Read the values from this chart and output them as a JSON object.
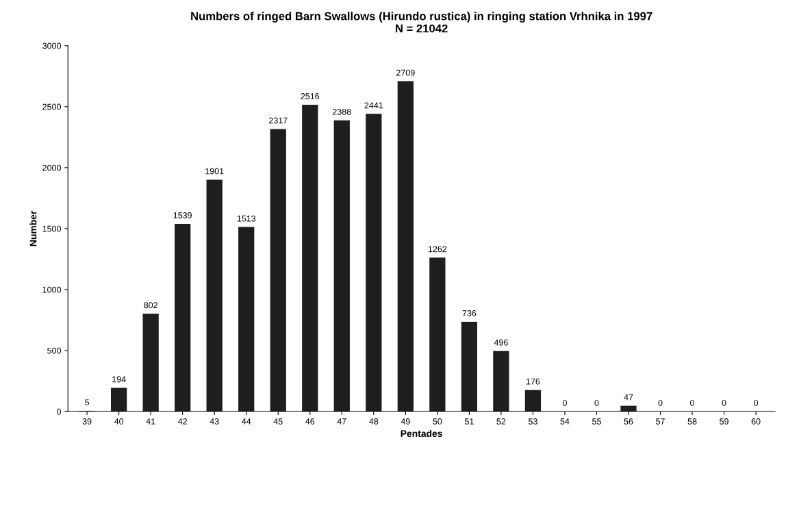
{
  "chart_data": {
    "type": "bar",
    "title": "Numbers of ringed Barn Swallows (Hirundo rustica) in ringing station Vrhnika in 1997",
    "subtitle": "N = 21042",
    "xlabel": "Pentades",
    "ylabel": "Number",
    "categories": [
      "39",
      "40",
      "41",
      "42",
      "43",
      "44",
      "45",
      "46",
      "47",
      "48",
      "49",
      "50",
      "51",
      "52",
      "53",
      "54",
      "55",
      "56",
      "57",
      "58",
      "59",
      "60"
    ],
    "values": [
      5,
      194,
      802,
      1539,
      1901,
      1513,
      2317,
      2516,
      2388,
      2441,
      2709,
      1262,
      736,
      496,
      176,
      0,
      0,
      47,
      0,
      0,
      0,
      0
    ],
    "color": "#1e1e1e",
    "ylim": [
      0,
      3000
    ],
    "yticks": [
      0,
      500,
      1000,
      1500,
      2000,
      2500,
      3000
    ],
    "data_labels": true,
    "grid": false,
    "legend": false
  }
}
